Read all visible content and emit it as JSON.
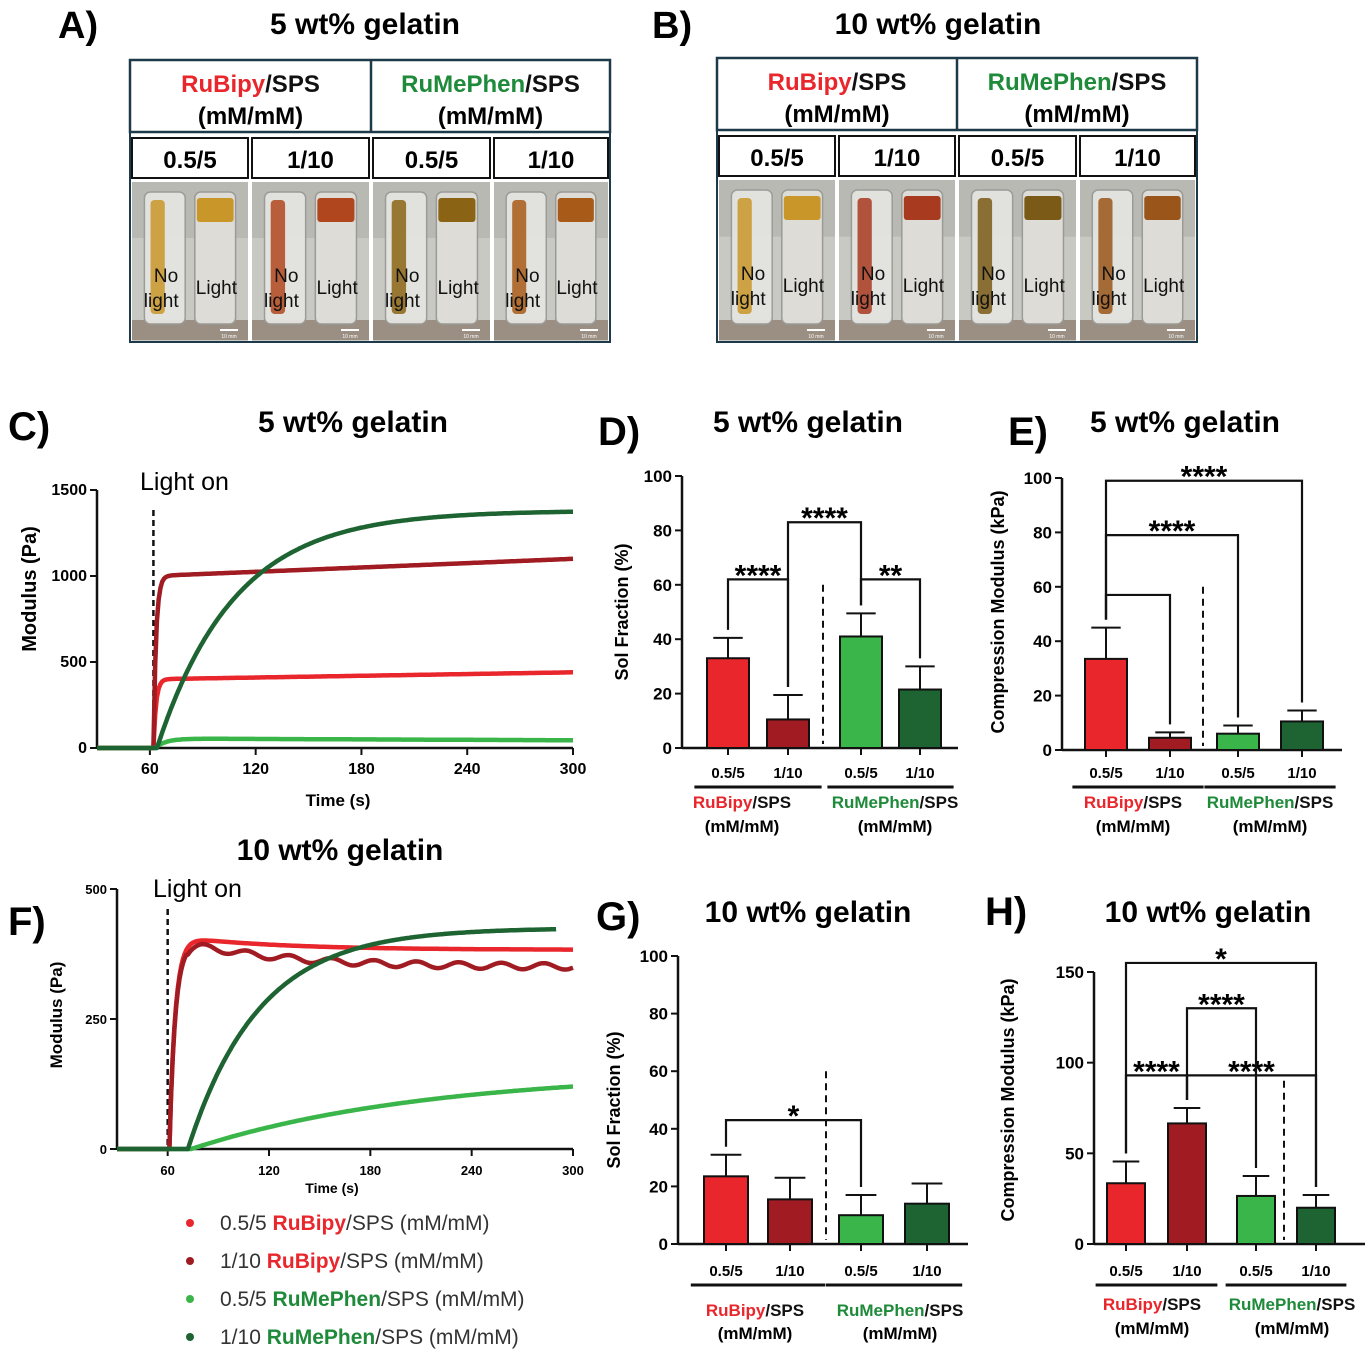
{
  "colors": {
    "rubipy_05": "#e8262b",
    "rubipy_1": "#a01c22",
    "rumephen_05": "#3ab54a",
    "rumephen_1": "#1e6432",
    "rubipy_text": "#e8262b",
    "rumephen_text": "#1e8a3a",
    "axis": "#111111"
  },
  "photo_panels": [
    {
      "letter": "A)",
      "title": "5 wt% gelatin",
      "groups": [
        {
          "name_colored": "RuBipy",
          "name_rest": "/SPS",
          "unit": "(mM/mM)",
          "color": "rubipy_text"
        },
        {
          "name_colored": "RuMePhen",
          "name_rest": "/SPS",
          "unit": "(mM/mM)",
          "color": "rumephen_text"
        }
      ],
      "ratios": [
        "0.5/5",
        "1/10",
        "0.5/5",
        "1/10"
      ],
      "vial_left": [
        "No",
        "light"
      ],
      "vial_right": "Light",
      "scale_text": "10 mm",
      "fill_colors": [
        "#c9962a",
        "#b0461e",
        "#8a6414",
        "#a85a18"
      ]
    },
    {
      "letter": "B)",
      "title": "10 wt% gelatin",
      "groups": [
        {
          "name_colored": "RuBipy",
          "name_rest": "/SPS",
          "unit": "(mM/mM)",
          "color": "rubipy_text"
        },
        {
          "name_colored": "RuMePhen",
          "name_rest": "/SPS",
          "unit": "(mM/mM)",
          "color": "rumephen_text"
        }
      ],
      "ratios": [
        "0.5/5",
        "1/10",
        "0.5/5",
        "1/10"
      ],
      "vial_left": [
        "No",
        "light"
      ],
      "vial_right": "Light",
      "scale_text": "10 mm",
      "fill_colors": [
        "#c9962a",
        "#a83a20",
        "#7a5a16",
        "#9a561a"
      ]
    }
  ],
  "legend": {
    "items": [
      {
        "prefix": "0.5/5 ",
        "name": "RuBipy",
        "suffix": "/SPS (mM/mM)",
        "color": "rubipy_05",
        "name_color": "rubipy_text"
      },
      {
        "prefix": "1/10 ",
        "name": "RuBipy",
        "suffix": "/SPS (mM/mM)",
        "color": "rubipy_1",
        "name_color": "rubipy_text"
      },
      {
        "prefix": "0.5/5 ",
        "name": "RuMePhen",
        "suffix": "/SPS (mM/mM)",
        "color": "rumephen_05",
        "name_color": "rumephen_text"
      },
      {
        "prefix": "1/10 ",
        "name": "RuMePhen",
        "suffix": "/SPS (mM/mM)",
        "color": "rumephen_1",
        "name_color": "rumephen_text"
      }
    ]
  },
  "chart_data": [
    {
      "id": "C",
      "letter": "C)",
      "type": "line",
      "title": "5 wt% gelatin",
      "xlabel": "Time (s)",
      "ylabel": "Modulus (Pa)",
      "xlim": [
        30,
        300
      ],
      "ylim": [
        0,
        1500
      ],
      "xticks": [
        60,
        120,
        180,
        240,
        300
      ],
      "yticks": [
        0,
        500,
        1000,
        1500
      ],
      "annotation": "Light on",
      "light_on_x": 62,
      "series": [
        {
          "color": "rubipy_05",
          "model": "step",
          "onset": 62,
          "plateau": 400,
          "final": 440,
          "tau": 1.5,
          "xend": 300
        },
        {
          "color": "rubipy_1",
          "model": "step",
          "onset": 62,
          "plateau": 1000,
          "final": 1100,
          "tau": 1.5,
          "xend": 300
        },
        {
          "color": "rumephen_05",
          "model": "step",
          "onset": 63,
          "plateau": 55,
          "final": 45,
          "tau": 6,
          "xend": 300
        },
        {
          "color": "rumephen_1",
          "model": "rise",
          "onset": 64,
          "plateau": 1380,
          "final": 1380,
          "tau": 44,
          "xend": 300
        }
      ]
    },
    {
      "id": "F",
      "letter": "F)",
      "type": "line",
      "title": "10 wt% gelatin",
      "xlabel": "Time (s)",
      "ylabel": "Modulus (Pa)",
      "xlim": [
        30,
        300
      ],
      "ylim": [
        0,
        500
      ],
      "xticks": [
        60,
        120,
        180,
        240,
        300
      ],
      "yticks": [
        0,
        250,
        500
      ],
      "annotation": "Light on",
      "light_on_x": 60,
      "series": [
        {
          "color": "rubipy_05",
          "model": "overshoot",
          "onset": 61,
          "plateau": 410,
          "final": 383,
          "tau": 3.5,
          "xend": 300
        },
        {
          "color": "rubipy_1",
          "model": "overshoot",
          "onset": 61,
          "plateau": 405,
          "final": 350,
          "tau": 3.5,
          "xend": 300
        },
        {
          "color": "rumephen_05",
          "model": "rise",
          "onset": 74,
          "plateau": 150,
          "final": 150,
          "tau": 140,
          "xend": 300
        },
        {
          "color": "rumephen_1",
          "model": "rise",
          "onset": 72,
          "plateau": 425,
          "final": 425,
          "tau": 42,
          "xend": 290
        }
      ]
    },
    {
      "id": "D",
      "letter": "D)",
      "type": "bar",
      "title": "5 wt% gelatin",
      "ylabel": "Sol Fraction (%)",
      "ylim": [
        0,
        100
      ],
      "yticks": [
        0,
        20,
        40,
        60,
        80,
        100
      ],
      "categories": [
        "0.5/5",
        "1/10",
        "0.5/5",
        "1/10"
      ],
      "values": [
        33,
        10.5,
        41,
        21.5
      ],
      "errors": [
        7.5,
        9,
        8.5,
        8.5
      ],
      "bar_colors": [
        "rubipy_05",
        "rubipy_1",
        "rumephen_05",
        "rumephen_1"
      ],
      "groups": [
        {
          "name_colored": "RuBipy",
          "name_rest": "/SPS",
          "unit": "(mM/mM)",
          "color": "rubipy_text"
        },
        {
          "name_colored": "RuMePhen",
          "name_rest": "/SPS",
          "unit": "(mM/mM)",
          "color": "rumephen_text"
        }
      ],
      "brackets": [
        {
          "from": 0,
          "to": 1,
          "y": 62,
          "label": "****"
        },
        {
          "from": 1,
          "to": 2,
          "y": 83,
          "label": "****"
        },
        {
          "from": 2,
          "to": 3,
          "y": 62,
          "label": "**"
        }
      ]
    },
    {
      "id": "E",
      "letter": "E)",
      "type": "bar",
      "title": "5 wt% gelatin",
      "ylabel": "Compression Modulus  (kPa)",
      "ylim": [
        0,
        100
      ],
      "yticks": [
        0,
        20,
        40,
        60,
        80,
        100
      ],
      "categories": [
        "0.5/5",
        "1/10",
        "0.5/5",
        "1/10"
      ],
      "values": [
        33.5,
        4.5,
        6,
        10.5
      ],
      "errors": [
        11.5,
        2,
        3,
        4
      ],
      "bar_colors": [
        "rubipy_05",
        "rubipy_1",
        "rumephen_05",
        "rumephen_1"
      ],
      "groups": [
        {
          "name_colored": "RuBipy",
          "name_rest": "/SPS",
          "unit": "(mM/mM)",
          "color": "rubipy_text"
        },
        {
          "name_colored": "RuMePhen",
          "name_rest": "/SPS",
          "unit": "(mM/mM)",
          "color": "rumephen_text"
        }
      ],
      "brackets": [
        {
          "from": 0,
          "to": 1,
          "y": 57,
          "label": ""
        },
        {
          "from": 0,
          "to": 2,
          "y": 79,
          "label": "****"
        },
        {
          "from": 0,
          "to": 3,
          "y": 99,
          "label": "****"
        }
      ]
    },
    {
      "id": "G",
      "letter": "G)",
      "type": "bar",
      "title": "10 wt% gelatin",
      "ylabel": "Sol Fraction (%)",
      "ylim": [
        0,
        100
      ],
      "yticks": [
        0,
        20,
        40,
        60,
        80,
        100
      ],
      "categories": [
        "0.5/5",
        "1/10",
        "0.5/5",
        "1/10"
      ],
      "values": [
        23.5,
        15.5,
        10,
        14
      ],
      "errors": [
        7.5,
        7.5,
        7,
        7
      ],
      "bar_colors": [
        "rubipy_05",
        "rubipy_1",
        "rumephen_05",
        "rumephen_1"
      ],
      "groups": [
        {
          "name_colored": "RuBipy",
          "name_rest": "/SPS",
          "unit": "(mM/mM)",
          "color": "rubipy_text"
        },
        {
          "name_colored": "RuMePhen",
          "name_rest": "/SPS",
          "unit": "(mM/mM)",
          "color": "rumephen_text"
        }
      ],
      "brackets": [
        {
          "from": 0,
          "to": 2,
          "y": 43,
          "label": "*"
        }
      ]
    },
    {
      "id": "H",
      "letter": "H)",
      "type": "bar",
      "title": "10 wt% gelatin",
      "ylabel": "Compression Modulus  (kPa)",
      "ylim": [
        0,
        150
      ],
      "yticks": [
        0,
        50,
        100,
        150
      ],
      "categories": [
        "0.5/5",
        "1/10",
        "0.5/5",
        "1/10"
      ],
      "values": [
        33.5,
        66.5,
        26.5,
        20
      ],
      "errors": [
        12,
        8.5,
        11,
        7
      ],
      "bar_colors": [
        "rubipy_05",
        "rubipy_1",
        "rumephen_05",
        "rumephen_1"
      ],
      "groups": [
        {
          "name_colored": "RuBipy",
          "name_rest": "/SPS",
          "unit": "(mM/mM)",
          "color": "rubipy_text"
        },
        {
          "name_colored": "RuMePhen",
          "name_rest": "/SPS",
          "unit": "(mM/mM)",
          "color": "rumephen_text"
        }
      ],
      "brackets": [
        {
          "from": 0,
          "to": 1,
          "y": 93,
          "label": "****"
        },
        {
          "from": 1,
          "to": 3,
          "y": 93,
          "label": "****"
        },
        {
          "from": 1,
          "to": 2,
          "y": 130,
          "label": "****"
        },
        {
          "from": 0,
          "to": 3,
          "y": 155,
          "label": "*"
        }
      ]
    }
  ]
}
